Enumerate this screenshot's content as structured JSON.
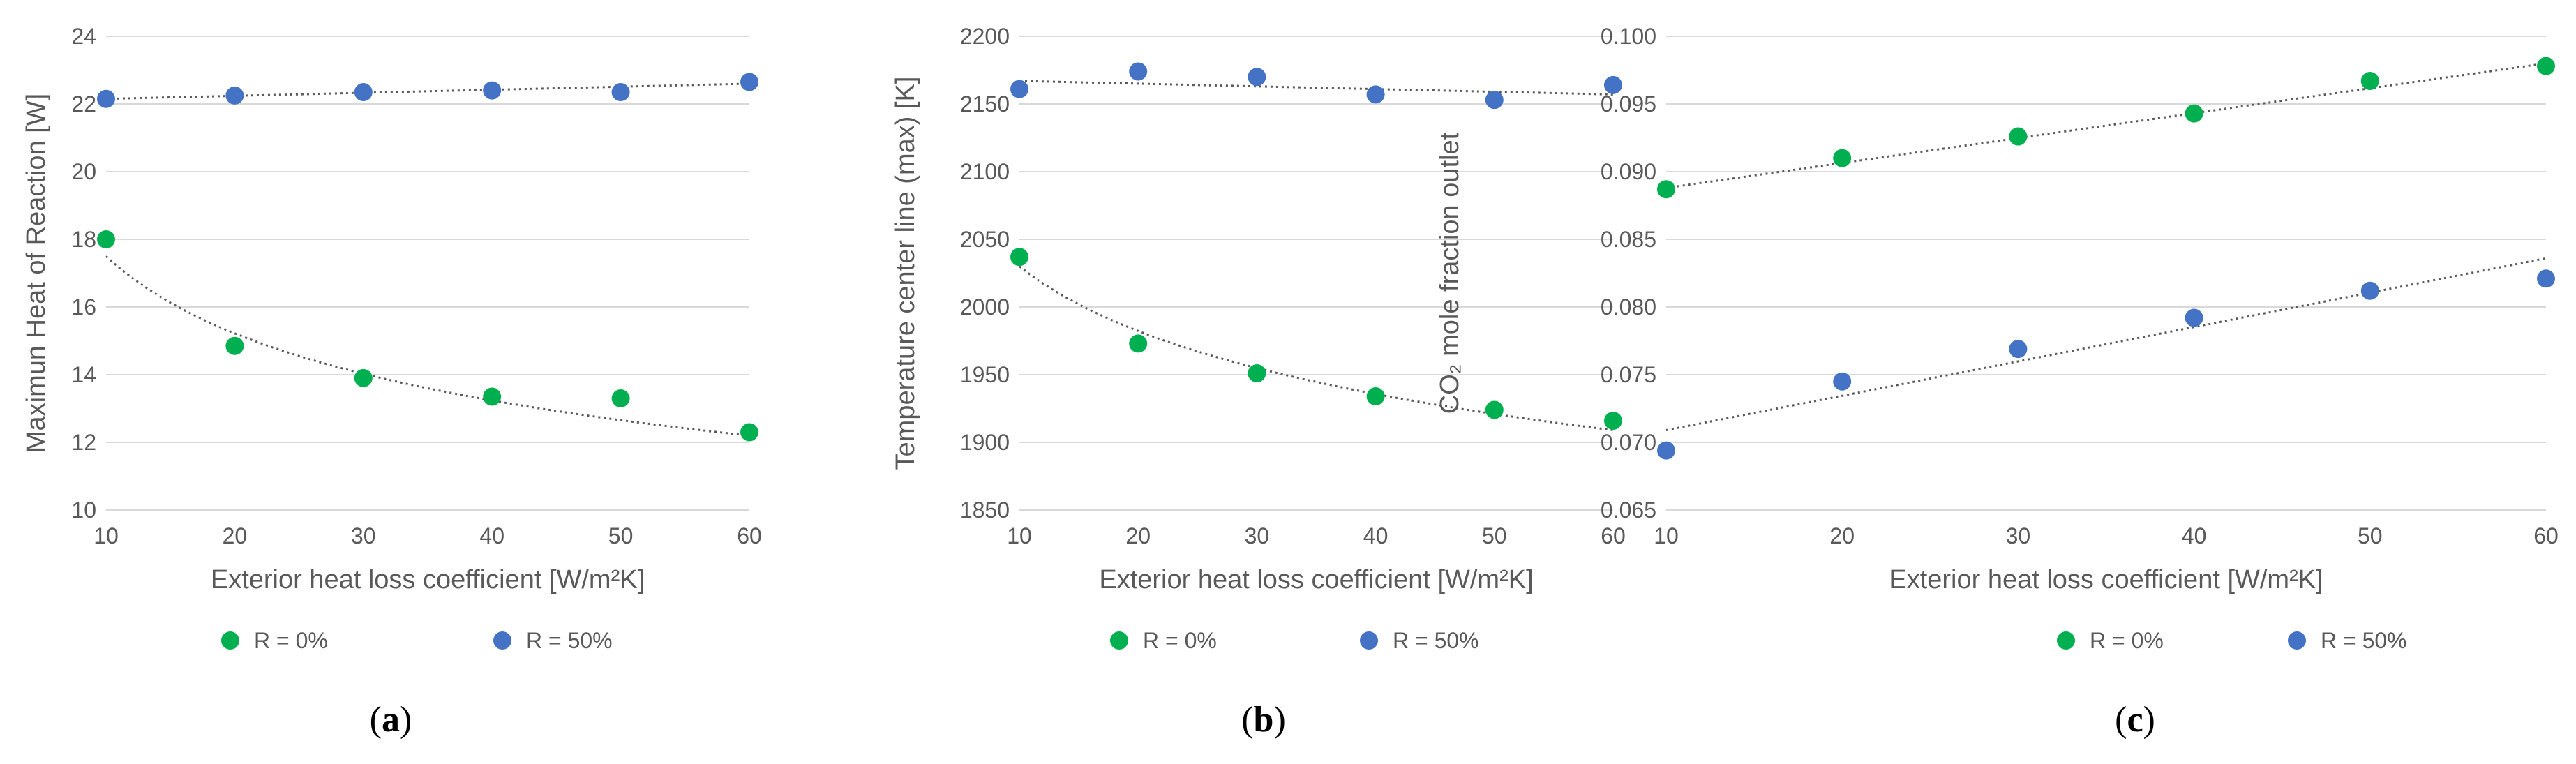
{
  "colors": {
    "r0": "#00b050",
    "r50": "#4472c4"
  },
  "chart_data": [
    {
      "type": "scatter",
      "panel_label": "a",
      "xlabel": "Exterior heat loss coefficient [W/m²K]",
      "ylabel": "Maximun Heat of Reaction [W]",
      "xlim": [
        10,
        60
      ],
      "ylim": [
        10,
        24
      ],
      "xticks": [
        "10",
        "20",
        "30",
        "40",
        "50",
        "60"
      ],
      "yticks": [
        "10",
        "12",
        "14",
        "16",
        "18",
        "20",
        "22",
        "24"
      ],
      "grid": true,
      "legend": [
        "R = 0%",
        "R = 50%"
      ],
      "series": [
        {
          "name": "R = 0%",
          "x": [
            10,
            20,
            30,
            40,
            50,
            60
          ],
          "y": [
            18.0,
            14.85,
            13.9,
            13.35,
            13.3,
            12.3
          ],
          "trend": {
            "type": "power",
            "x": [
              10,
              20,
              30,
              40,
              50,
              60
            ],
            "y": [
              17.5,
              15.4,
              14.2,
              13.4,
              12.8,
              12.2
            ]
          }
        },
        {
          "name": "R = 50%",
          "x": [
            10,
            20,
            30,
            40,
            50,
            60
          ],
          "y": [
            22.15,
            22.25,
            22.35,
            22.4,
            22.35,
            22.65
          ],
          "trend": {
            "type": "linear",
            "x": [
              10,
              60
            ],
            "y": [
              22.15,
              22.6
            ]
          }
        }
      ]
    },
    {
      "type": "scatter",
      "panel_label": "b",
      "xlabel": "Exterior heat loss coefficient [W/m²K]",
      "ylabel": "Temperature center line (max) [K]",
      "xlim": [
        10,
        60
      ],
      "ylim": [
        1850,
        2200
      ],
      "xticks": [
        "10",
        "20",
        "30",
        "40",
        "50",
        "60"
      ],
      "yticks": [
        "1850",
        "1900",
        "1950",
        "2000",
        "2050",
        "2100",
        "2150",
        "2200"
      ],
      "grid": true,
      "legend": [
        "R = 0%",
        "R = 50%"
      ],
      "series": [
        {
          "name": "R = 0%",
          "x": [
            10,
            20,
            30,
            40,
            50,
            60
          ],
          "y": [
            2037,
            1973,
            1951,
            1934,
            1924,
            1916
          ],
          "trend": {
            "type": "power",
            "x": [
              10,
              20,
              30,
              40,
              50,
              60
            ],
            "y": [
              2030,
              1982,
              1955,
              1936,
              1921,
              1909
            ]
          }
        },
        {
          "name": "R = 50%",
          "x": [
            10,
            20,
            30,
            40,
            50,
            60
          ],
          "y": [
            2161,
            2174,
            2170,
            2157,
            2153,
            2164
          ],
          "trend": {
            "type": "linear",
            "x": [
              10,
              60
            ],
            "y": [
              2167,
              2157
            ]
          }
        }
      ]
    },
    {
      "type": "scatter",
      "panel_label": "c",
      "xlabel": "Exterior heat loss coefficient [W/m²K]",
      "ylabel": "CO₂ mole fraction outlet",
      "xlim": [
        10,
        60
      ],
      "ylim": [
        0.065,
        0.1
      ],
      "xticks": [
        "10",
        "20",
        "30",
        "40",
        "50",
        "60"
      ],
      "yticks": [
        "0.065",
        "0.070",
        "0.075",
        "0.080",
        "0.085",
        "0.090",
        "0.095",
        "0.100"
      ],
      "grid": true,
      "legend": [
        "R = 0%",
        "R = 50%"
      ],
      "series": [
        {
          "name": "R = 0%",
          "x": [
            10,
            20,
            30,
            40,
            50,
            60
          ],
          "y": [
            0.0887,
            0.091,
            0.0926,
            0.0943,
            0.0967,
            0.0978
          ],
          "trend": {
            "type": "linear",
            "x": [
              10,
              60
            ],
            "y": [
              0.0888,
              0.098
            ]
          }
        },
        {
          "name": "R = 50%",
          "x": [
            10,
            20,
            30,
            40,
            50,
            60
          ],
          "y": [
            0.0694,
            0.0745,
            0.0769,
            0.0792,
            0.0812,
            0.0821
          ],
          "trend": {
            "type": "linear",
            "x": [
              10,
              60
            ],
            "y": [
              0.0709,
              0.0836
            ]
          }
        }
      ]
    }
  ]
}
